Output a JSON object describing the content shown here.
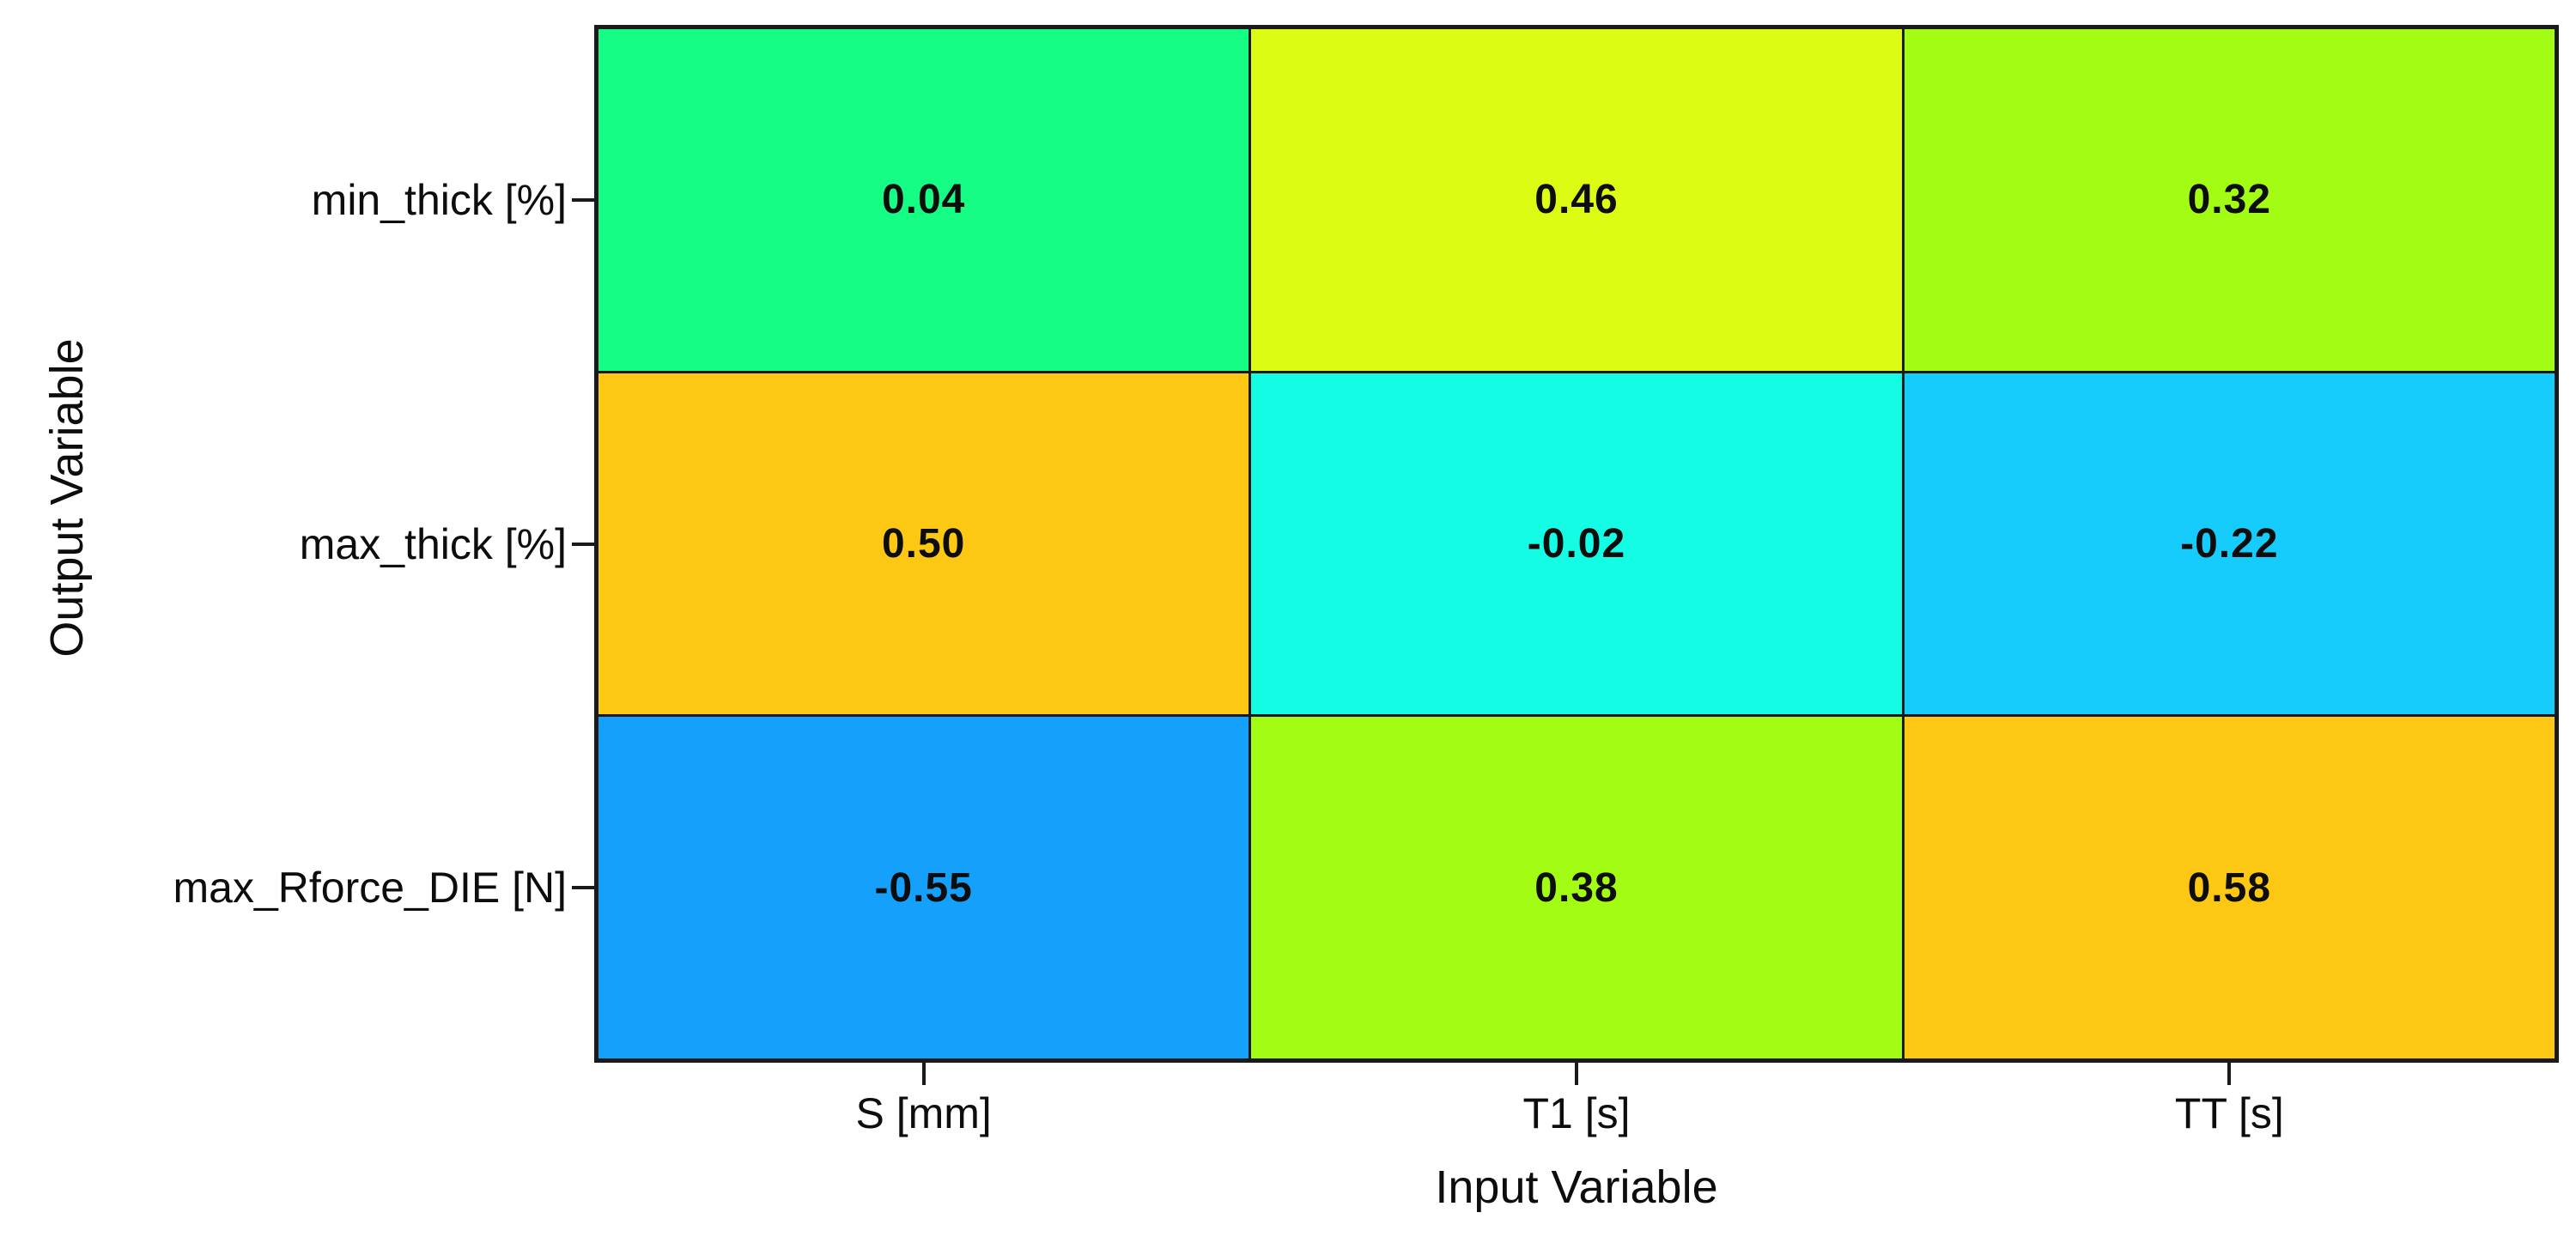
{
  "chart_data": {
    "type": "heatmap",
    "title": "",
    "xlabel": "Input Variable",
    "ylabel": "Output Variable",
    "x_categories": [
      "S [mm]",
      "T1 [s]",
      "TT [s]"
    ],
    "y_categories": [
      "min_thick [%]",
      "max_thick [%]",
      "max_Rforce_DIE [N]"
    ],
    "values": [
      [
        0.04,
        0.46,
        0.32
      ],
      [
        0.5,
        -0.02,
        -0.22
      ],
      [
        -0.55,
        0.38,
        0.58
      ]
    ],
    "value_labels": [
      [
        "0.04",
        "0.46",
        "0.32"
      ],
      [
        "0.50",
        "-0.02",
        "-0.22"
      ],
      [
        "-0.55",
        "0.38",
        "0.58"
      ]
    ],
    "cell_colors": [
      [
        "#15fd85",
        "#dcfc13",
        "#a2fc13"
      ],
      [
        "#fdc813",
        "#15fce5",
        "#15ccfc"
      ],
      [
        "#15a0fc",
        "#a2fc13",
        "#fdc813"
      ]
    ],
    "frame_color": "#1a1a1a",
    "text_color": "#0d0d0d",
    "grid": true,
    "legend": "none"
  }
}
